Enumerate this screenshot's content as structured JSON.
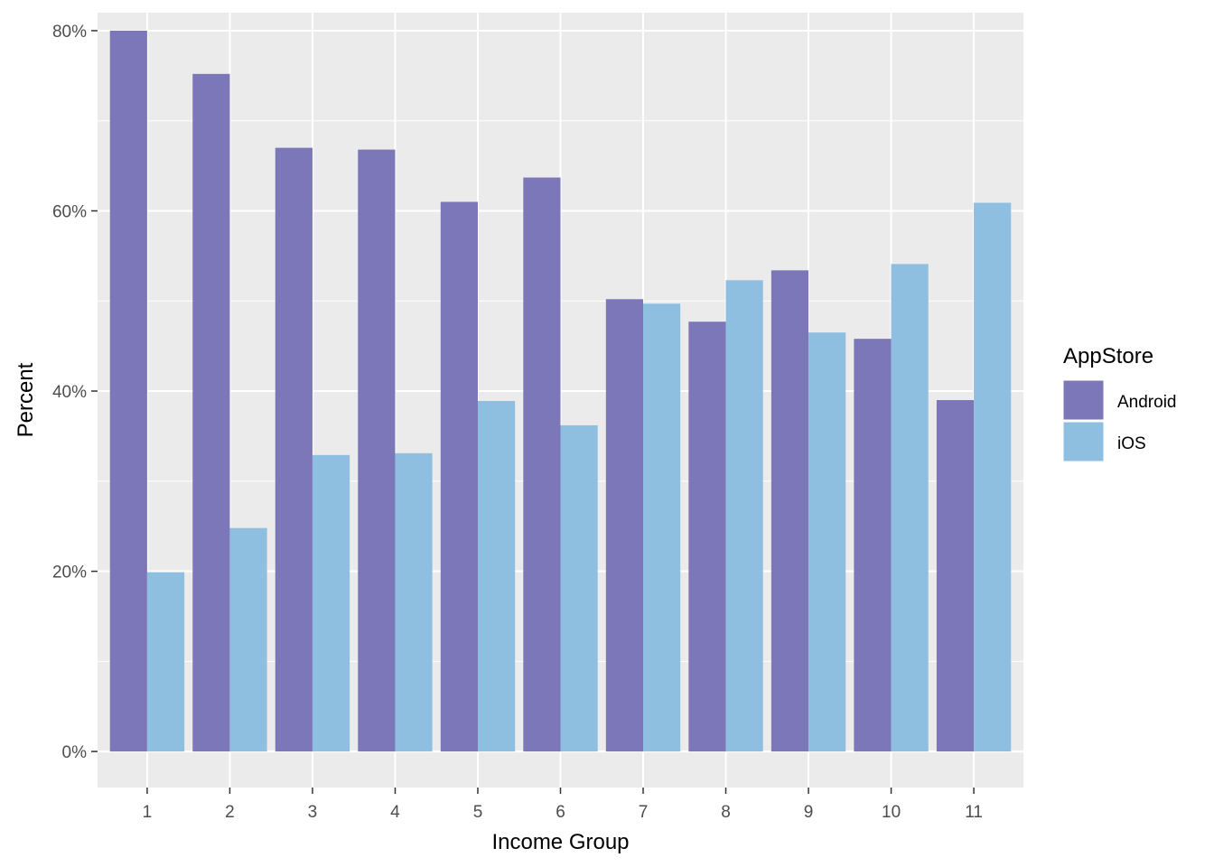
{
  "chart_data": {
    "type": "bar",
    "title": "",
    "xlabel": "Income Group",
    "ylabel": "Percent",
    "categories": [
      "1",
      "2",
      "3",
      "4",
      "5",
      "6",
      "7",
      "8",
      "9",
      "10",
      "11"
    ],
    "series": [
      {
        "name": "Android",
        "color": "#7b77b9",
        "values": [
          0.8,
          0.752,
          0.67,
          0.668,
          0.61,
          0.637,
          0.502,
          0.477,
          0.534,
          0.458,
          0.39
        ]
      },
      {
        "name": "iOS",
        "color": "#8fbfe0",
        "values": [
          0.199,
          0.248,
          0.329,
          0.331,
          0.389,
          0.362,
          0.497,
          0.523,
          0.465,
          0.541,
          0.609
        ]
      }
    ],
    "ylim": [
      -0.04,
      0.82
    ],
    "yticks": [
      0,
      0.2,
      0.4,
      0.6,
      0.8
    ],
    "ytick_labels": [
      "0%",
      "20%",
      "40%",
      "60%",
      "80%"
    ],
    "grid": true,
    "panel_background": "#ebebeb",
    "legend": {
      "title": "AppStore",
      "placement": "right"
    }
  }
}
